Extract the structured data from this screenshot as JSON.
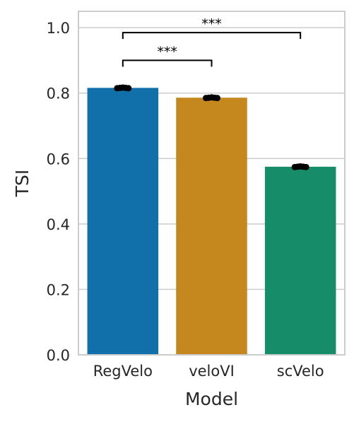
{
  "chart_data": {
    "type": "bar",
    "title": "",
    "xlabel": "Model",
    "ylabel": "TSI",
    "categories": [
      "RegVelo",
      "veloVI",
      "scVelo"
    ],
    "values": [
      0.816,
      0.786,
      0.575
    ],
    "colors": [
      "#1170aa",
      "#c4881f",
      "#168c68"
    ],
    "points": [
      [
        0.815,
        0.816,
        0.817,
        0.816,
        0.815
      ],
      [
        0.785,
        0.786,
        0.787,
        0.786,
        0.785
      ],
      [
        0.574,
        0.575,
        0.576,
        0.575,
        0.574
      ]
    ],
    "ylim": [
      0,
      1.05
    ],
    "yticks": [
      "0.0",
      "0.2",
      "0.4",
      "0.6",
      "0.8",
      "1.0"
    ],
    "ytick_values": [
      0,
      0.2,
      0.4,
      0.6,
      0.8,
      1.0
    ],
    "grid": true,
    "significance": [
      {
        "from": 0,
        "to": 1,
        "y": 0.9,
        "label": "***"
      },
      {
        "from": 0,
        "to": 2,
        "y": 0.985,
        "label": "***"
      }
    ]
  }
}
